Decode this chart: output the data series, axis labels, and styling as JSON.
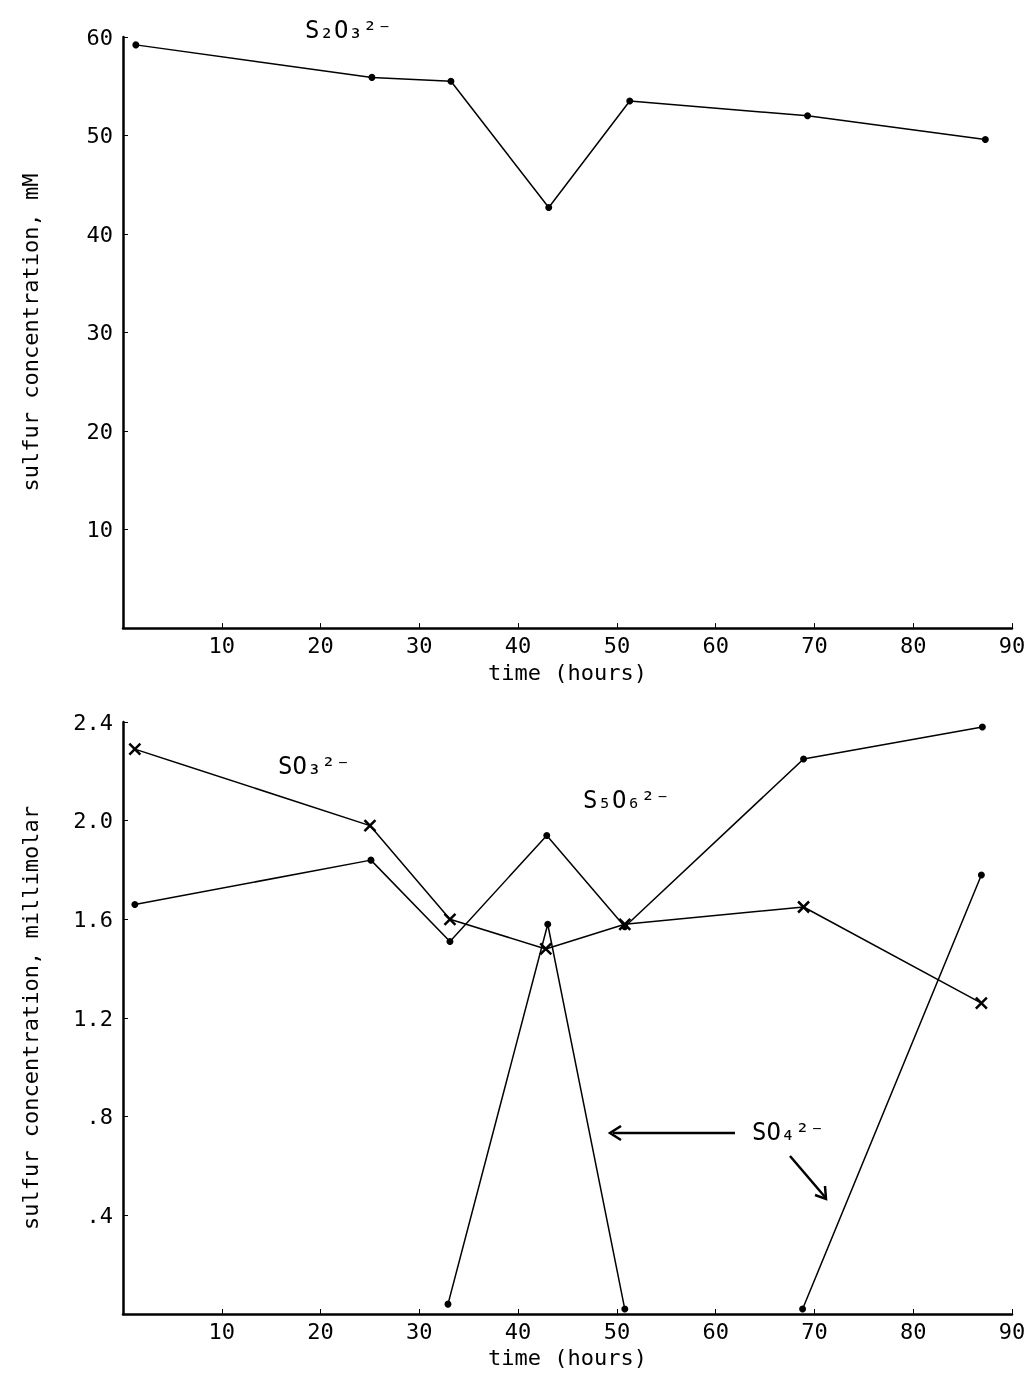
{
  "chart_data": [
    {
      "type": "line",
      "xlabel": "time (hours)",
      "ylabel": "sulfur concentration, mM",
      "xlim": [
        0,
        90
      ],
      "ylim": [
        0,
        60
      ],
      "xticks": [
        10,
        20,
        30,
        40,
        50,
        60,
        70,
        80,
        90
      ],
      "yticks": [
        10,
        20,
        30,
        40,
        50,
        60
      ],
      "line_style": "solid",
      "series": [
        {
          "name": "S₂O₃²⁻",
          "color": "#000000",
          "marker": "circle",
          "x": [
            1.3,
            25.2,
            33.2,
            43.1,
            51.3,
            69.3,
            87.3
          ],
          "values": [
            59.2,
            55.9,
            55.5,
            42.7,
            53.5,
            52.0,
            49.6
          ]
        }
      ]
    },
    {
      "type": "line",
      "xlabel": "time (hours)",
      "ylabel": "sulfur concentration, millimolar",
      "xlim": [
        0,
        90
      ],
      "ylim": [
        0,
        2.4
      ],
      "xticks": [
        10,
        20,
        30,
        40,
        50,
        60,
        70,
        80,
        90
      ],
      "yticks": [
        {
          "value": 0.4,
          "label": ".4"
        },
        {
          "value": 0.8,
          "label": ".8"
        },
        1.2,
        1.6,
        {
          "value": 2.0,
          "label": "2.0"
        },
        2.4
      ],
      "line_style": "solid",
      "series": [
        {
          "name": "SO₃²⁻",
          "color": "#000000",
          "marker": "cross",
          "x": [
            1.2,
            25.0,
            33.1,
            42.8,
            50.8,
            68.9,
            86.9
          ],
          "values": [
            2.29,
            1.98,
            1.6,
            1.48,
            1.58,
            1.65,
            1.26
          ]
        },
        {
          "name": "S₅O₆²⁻",
          "color": "#000000",
          "marker": "circle",
          "x": [
            1.2,
            25.1,
            33.1,
            42.9,
            50.8,
            68.9,
            87.0
          ],
          "values": [
            1.66,
            1.84,
            1.51,
            1.94,
            1.57,
            2.25,
            2.38
          ]
        },
        {
          "name": "SO₄²⁻",
          "color": "#000000",
          "marker": "circle",
          "x": [
            32.9,
            43.0,
            50.8,
            null,
            68.8,
            86.9
          ],
          "values": [
            0.04,
            1.58,
            0.02,
            null,
            0.02,
            1.78
          ]
        }
      ]
    }
  ]
}
